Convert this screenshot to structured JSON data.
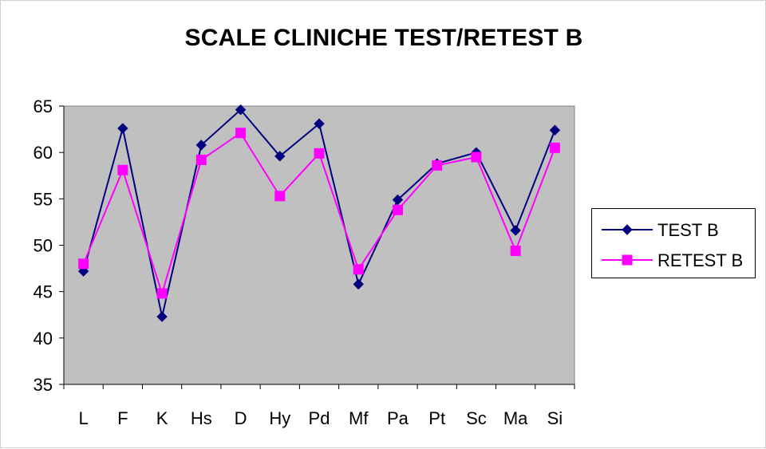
{
  "chart_data": {
    "type": "line",
    "title": "SCALE CLINICHE TEST/RETEST B",
    "xlabel": "",
    "ylabel": "",
    "categories": [
      "L",
      "F",
      "K",
      "Hs",
      "D",
      "Hy",
      "Pd",
      "Mf",
      "Pa",
      "Pt",
      "Sc",
      "Ma",
      "Si"
    ],
    "ylim": [
      35,
      65
    ],
    "yticks": [
      "35",
      "40",
      "45",
      "50",
      "55",
      "60",
      "65"
    ],
    "grid": false,
    "plot_background": "#C0C0C0",
    "legend_position": "right",
    "series": [
      {
        "name": "TEST B",
        "color": "#000080",
        "marker": "diamond",
        "values": [
          47.2,
          62.6,
          42.3,
          60.8,
          64.6,
          59.6,
          63.1,
          45.8,
          54.9,
          58.8,
          60.0,
          51.6,
          62.4
        ]
      },
      {
        "name": "RETEST B",
        "color": "#FF00FF",
        "marker": "square",
        "values": [
          48.0,
          58.1,
          44.8,
          59.2,
          62.1,
          55.3,
          59.9,
          47.4,
          53.8,
          58.6,
          59.5,
          49.4,
          60.5
        ]
      }
    ]
  }
}
